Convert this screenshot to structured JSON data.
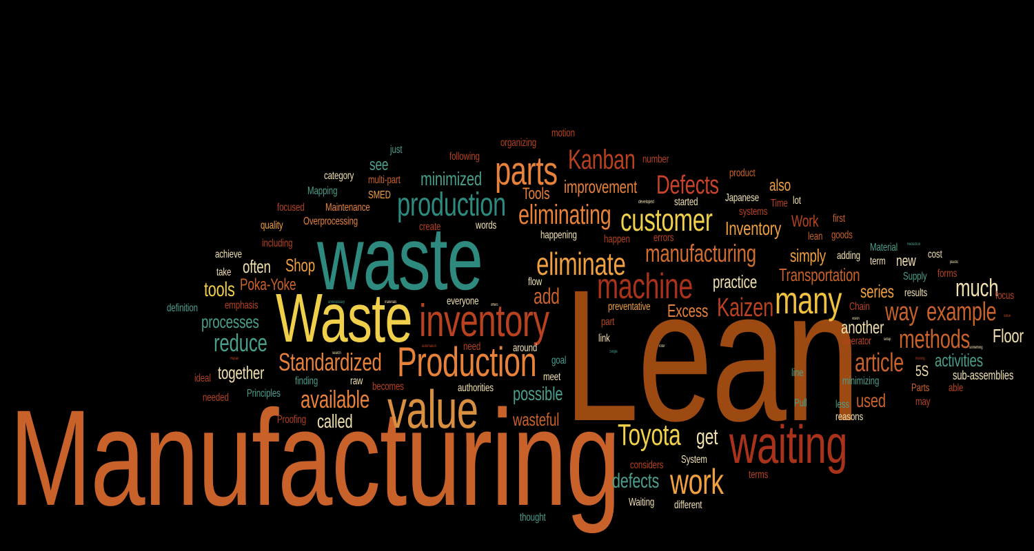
{
  "palette": {
    "background": "#000000",
    "teal": "#2e8a7e",
    "teal_light": "#4a9e8c",
    "yellow": "#f0d04a",
    "orange": "#e8823a",
    "orange_dark": "#c9622a",
    "rust": "#b8421f",
    "red": "#a8321a",
    "brown": "#9c4a12",
    "cream": "#f0e0b0",
    "gold": "#f2a848"
  },
  "words": [
    {
      "id": "manufacturing-large",
      "text": "Manufacturing",
      "color": "#c9622a"
    },
    {
      "id": "lean-large",
      "text": "Lean",
      "color": "#9c4a12"
    },
    {
      "id": "waste-lower",
      "text": "waste",
      "color": "#2e8a7e"
    },
    {
      "id": "waste-upper",
      "text": "Waste",
      "color": "#f0d04a"
    },
    {
      "id": "inventory",
      "text": "inventory",
      "color": "#b8421f"
    },
    {
      "id": "production-upper",
      "text": "Production",
      "color": "#e8823a"
    },
    {
      "id": "value",
      "text": "value",
      "color": "#d89040"
    },
    {
      "id": "machine",
      "text": "machine",
      "color": "#a8321a"
    },
    {
      "id": "waiting",
      "text": "waiting",
      "color": "#a8321a"
    },
    {
      "id": "parts",
      "text": "parts",
      "color": "#e8823a"
    },
    {
      "id": "production-lower",
      "text": "production",
      "color": "#2e8a7e"
    },
    {
      "id": "customer",
      "text": "customer",
      "color": "#f0d04a"
    },
    {
      "id": "many",
      "text": "many",
      "color": "#f0c040"
    },
    {
      "id": "eliminate",
      "text": "eliminate",
      "color": "#f0a040"
    },
    {
      "id": "eliminating",
      "text": "eliminating",
      "color": "#e8823a"
    },
    {
      "id": "work-large",
      "text": "work",
      "color": "#f0a040"
    },
    {
      "id": "toyota",
      "text": "Toyota",
      "color": "#f0d04a"
    },
    {
      "id": "kanban",
      "text": "Kanban",
      "color": "#b8421f"
    },
    {
      "id": "defects-upper",
      "text": "Defects",
      "color": "#c9422a"
    },
    {
      "id": "manufacturing-small",
      "text": "manufacturing",
      "color": "#d26e30"
    },
    {
      "id": "kaizen",
      "text": "Kaizen",
      "color": "#b8421f"
    },
    {
      "id": "standardized",
      "text": "Standardized",
      "color": "#e8823a"
    },
    {
      "id": "available",
      "text": "available",
      "color": "#e8823a"
    },
    {
      "id": "reduce",
      "text": "reduce",
      "color": "#4a9e8c"
    },
    {
      "id": "methods",
      "text": "methods",
      "color": "#c9622a"
    },
    {
      "id": "example",
      "text": "example",
      "color": "#c9622a"
    },
    {
      "id": "article",
      "text": "article",
      "color": "#c9622a"
    },
    {
      "id": "much",
      "text": "much",
      "color": "#f0e0b0"
    },
    {
      "id": "way",
      "text": "way",
      "color": "#c9622a"
    },
    {
      "id": "add",
      "text": "add",
      "color": "#c9622a"
    },
    {
      "id": "minimized",
      "text": "minimized",
      "color": "#4a9e8c"
    },
    {
      "id": "improvement",
      "text": "improvement",
      "color": "#e8823a"
    },
    {
      "id": "inventory-upper",
      "text": "Inventory",
      "color": "#f0a040"
    },
    {
      "id": "tools-lower",
      "text": "tools",
      "color": "#f0d04a"
    },
    {
      "id": "processes",
      "text": "processes",
      "color": "#4a9e8c"
    },
    {
      "id": "together",
      "text": "together",
      "color": "#f0e0b0"
    },
    {
      "id": "called",
      "text": "called",
      "color": "#f0e0b0"
    },
    {
      "id": "possible",
      "text": "possible",
      "color": "#4a9e8c"
    },
    {
      "id": "wasteful",
      "text": "wasteful",
      "color": "#c9622a"
    },
    {
      "id": "defects-lower",
      "text": "defects",
      "color": "#4a9e8c"
    },
    {
      "id": "get",
      "text": "get",
      "color": "#f0e0b0"
    },
    {
      "id": "used",
      "text": "used",
      "color": "#c9622a"
    },
    {
      "id": "simply",
      "text": "simply",
      "color": "#f0a040"
    },
    {
      "id": "transportation",
      "text": "Transportation",
      "color": "#c9622a"
    },
    {
      "id": "practice",
      "text": "practice",
      "color": "#f0e0b0"
    },
    {
      "id": "excess",
      "text": "Excess",
      "color": "#e8823a"
    },
    {
      "id": "series",
      "text": "series",
      "color": "#f0a040"
    },
    {
      "id": "another",
      "text": "another",
      "color": "#f0e0b0"
    },
    {
      "id": "floor",
      "text": "Floor",
      "color": "#f0e0b0"
    },
    {
      "id": "activities",
      "text": "activities",
      "color": "#4a9e8c"
    },
    {
      "id": "shop",
      "text": "Shop",
      "color": "#f0a040"
    },
    {
      "id": "often",
      "text": "often",
      "color": "#f0e0b0"
    },
    {
      "id": "poka-yoke",
      "text": "Poka-Yoke",
      "color": "#c9622a"
    },
    {
      "id": "also",
      "text": "also",
      "color": "#f0a040"
    },
    {
      "id": "work-upper",
      "text": "Work",
      "color": "#b8421f"
    },
    {
      "id": "tools-upper",
      "text": "Tools",
      "color": "#e8823a"
    },
    {
      "id": "new",
      "text": "new",
      "color": "#f0e0b0"
    },
    {
      "id": "see",
      "text": "see",
      "color": "#4a9e8c"
    },
    {
      "id": "fivees",
      "text": "5S",
      "color": "#f0e0b0"
    },
    {
      "id": "sub-assemblies",
      "text": "sub-assemblies",
      "color": "#f0e0b0"
    },
    {
      "id": "just",
      "text": "just",
      "color": "#4a9e8c"
    },
    {
      "id": "following",
      "text": "following",
      "color": "#b8421f"
    },
    {
      "id": "organizing",
      "text": "organizing",
      "color": "#b8421f"
    },
    {
      "id": "motion",
      "text": "motion",
      "color": "#b8421f"
    },
    {
      "id": "number",
      "text": "number",
      "color": "#b8421f"
    },
    {
      "id": "product",
      "text": "product",
      "color": "#c9622a"
    },
    {
      "id": "category",
      "text": "category",
      "color": "#f0e0b0"
    },
    {
      "id": "multi-part",
      "text": "multi-part",
      "color": "#c9622a"
    },
    {
      "id": "mapping",
      "text": "Mapping",
      "color": "#4a9e8c"
    },
    {
      "id": "smed",
      "text": "SMED",
      "color": "#f0a040"
    },
    {
      "id": "focused",
      "text": "focused",
      "color": "#b8421f"
    },
    {
      "id": "maintenance",
      "text": "Maintenance",
      "color": "#e8823a"
    },
    {
      "id": "overprocessing",
      "text": "Overprocessing",
      "color": "#e8823a"
    },
    {
      "id": "quality",
      "text": "quality",
      "color": "#f0a040"
    },
    {
      "id": "create",
      "text": "create",
      "color": "#b8421f"
    },
    {
      "id": "words",
      "text": "words",
      "color": "#f0e0b0"
    },
    {
      "id": "including",
      "text": "including",
      "color": "#b8421f"
    },
    {
      "id": "achieve",
      "text": "achieve",
      "color": "#f0e0b0"
    },
    {
      "id": "take",
      "text": "take",
      "color": "#f0e0b0"
    },
    {
      "id": "happening",
      "text": "happening",
      "color": "#f0e0b0"
    },
    {
      "id": "happen",
      "text": "happen",
      "color": "#b8421f"
    },
    {
      "id": "errors",
      "text": "errors",
      "color": "#b8421f"
    },
    {
      "id": "started",
      "text": "started",
      "color": "#f0e0b0"
    },
    {
      "id": "japanese",
      "text": "Japanese",
      "color": "#f0e0b0"
    },
    {
      "id": "systems",
      "text": "systems",
      "color": "#b8421f"
    },
    {
      "id": "time",
      "text": "Time",
      "color": "#b8421f"
    },
    {
      "id": "lot",
      "text": "lot",
      "color": "#f0e0b0"
    },
    {
      "id": "lean-small",
      "text": "lean",
      "color": "#c9622a"
    },
    {
      "id": "first",
      "text": "first",
      "color": "#c9622a"
    },
    {
      "id": "goods",
      "text": "goods",
      "color": "#c9622a"
    },
    {
      "id": "adding",
      "text": "adding",
      "color": "#f0e0b0"
    },
    {
      "id": "term",
      "text": "term",
      "color": "#f0e0b0"
    },
    {
      "id": "material",
      "text": "Material",
      "color": "#4a9e8c"
    },
    {
      "id": "cost",
      "text": "cost",
      "color": "#f0e0b0"
    },
    {
      "id": "forms",
      "text": "forms",
      "color": "#b8421f"
    },
    {
      "id": "supply",
      "text": "Supply",
      "color": "#4a9e8c"
    },
    {
      "id": "results",
      "text": "results",
      "color": "#f0e0b0"
    },
    {
      "id": "focus",
      "text": "focus",
      "color": "#b8421f"
    },
    {
      "id": "flow",
      "text": "flow",
      "color": "#f0e0b0"
    },
    {
      "id": "chain",
      "text": "Chain",
      "color": "#b8421f"
    },
    {
      "id": "preventative",
      "text": "preventative",
      "color": "#f0a040"
    },
    {
      "id": "emphasis",
      "text": "emphasis",
      "color": "#b8421f"
    },
    {
      "id": "definition",
      "text": "definition",
      "color": "#4a9e8c"
    },
    {
      "id": "everyone",
      "text": "everyone",
      "color": "#f0e0b0"
    },
    {
      "id": "part",
      "text": "part",
      "color": "#b8421f"
    },
    {
      "id": "link",
      "text": "link",
      "color": "#f0e0b0"
    },
    {
      "id": "operator",
      "text": "operator",
      "color": "#b8421f"
    },
    {
      "id": "need",
      "text": "need",
      "color": "#b8421f"
    },
    {
      "id": "around",
      "text": "around",
      "color": "#f0e0b0"
    },
    {
      "id": "goal",
      "text": "goal",
      "color": "#4a9e8c"
    },
    {
      "id": "line",
      "text": "line",
      "color": "#4a9e8c"
    },
    {
      "id": "minimizing",
      "text": "minimizing",
      "color": "#4a9e8c"
    },
    {
      "id": "ideal",
      "text": "ideal",
      "color": "#b8421f"
    },
    {
      "id": "finding",
      "text": "finding",
      "color": "#4a9e8c"
    },
    {
      "id": "raw",
      "text": "raw",
      "color": "#f0e0b0"
    },
    {
      "id": "meet",
      "text": "meet",
      "color": "#f0e0b0"
    },
    {
      "id": "becomes",
      "text": "becomes",
      "color": "#b8421f"
    },
    {
      "id": "authorities",
      "text": "authorities",
      "color": "#f0e0b0"
    },
    {
      "id": "needed",
      "text": "needed",
      "color": "#b8421f"
    },
    {
      "id": "principles",
      "text": "Principles",
      "color": "#4a9e8c"
    },
    {
      "id": "proofing",
      "text": "Proofing",
      "color": "#b8421f"
    },
    {
      "id": "pull",
      "text": "Pull",
      "color": "#4a9e8c"
    },
    {
      "id": "parts-upper",
      "text": "Parts",
      "color": "#c9622a"
    },
    {
      "id": "may",
      "text": "may",
      "color": "#b8421f"
    },
    {
      "id": "able",
      "text": "able",
      "color": "#b8421f"
    },
    {
      "id": "less",
      "text": "less",
      "color": "#4a9e8c"
    },
    {
      "id": "reasons",
      "text": "reasons",
      "color": "#f0e0b0"
    },
    {
      "id": "considers",
      "text": "considers",
      "color": "#b8421f"
    },
    {
      "id": "system",
      "text": "System",
      "color": "#f0e0b0"
    },
    {
      "id": "terms",
      "text": "terms",
      "color": "#b8421f"
    },
    {
      "id": "waiting-upper",
      "text": "Waiting",
      "color": "#f0e0b0"
    },
    {
      "id": "different",
      "text": "different",
      "color": "#f0e0b0"
    },
    {
      "id": "thought",
      "text": "thought",
      "color": "#4a9e8c"
    },
    {
      "id": "developed",
      "text": "developed",
      "color": "#f0e0b0"
    },
    {
      "id": "unnecessary",
      "text": "unnecessary",
      "color": "#4a9e8c"
    },
    {
      "id": "materials",
      "text": "materials",
      "color": "#f0e0b0"
    },
    {
      "id": "offers",
      "text": "offers",
      "color": "#f0e0b0"
    },
    {
      "id": "automation",
      "text": "automation",
      "color": "#b8421f"
    },
    {
      "id": "search",
      "text": "search",
      "color": "#f0e0b0"
    },
    {
      "id": "repair",
      "text": "Repair",
      "color": "#b8421f"
    },
    {
      "id": "single",
      "text": "Single",
      "color": "#4a9e8c"
    },
    {
      "id": "rotor",
      "text": "rotor",
      "color": "#f0e0b0"
    },
    {
      "id": "plastic",
      "text": "plastic",
      "color": "#f0e0b0"
    },
    {
      "id": "reduction",
      "text": "Reduction",
      "color": "#4a9e8c"
    },
    {
      "id": "something",
      "text": "something",
      "color": "#f0e0b0"
    },
    {
      "id": "vision",
      "text": "vision",
      "color": "#f0e0b0"
    },
    {
      "id": "setup",
      "text": "setup",
      "color": "#f0e0b0"
    },
    {
      "id": "value-small",
      "text": "value",
      "color": "#b8421f"
    },
    {
      "id": "moving",
      "text": "moving",
      "color": "#b8421f"
    }
  ]
}
